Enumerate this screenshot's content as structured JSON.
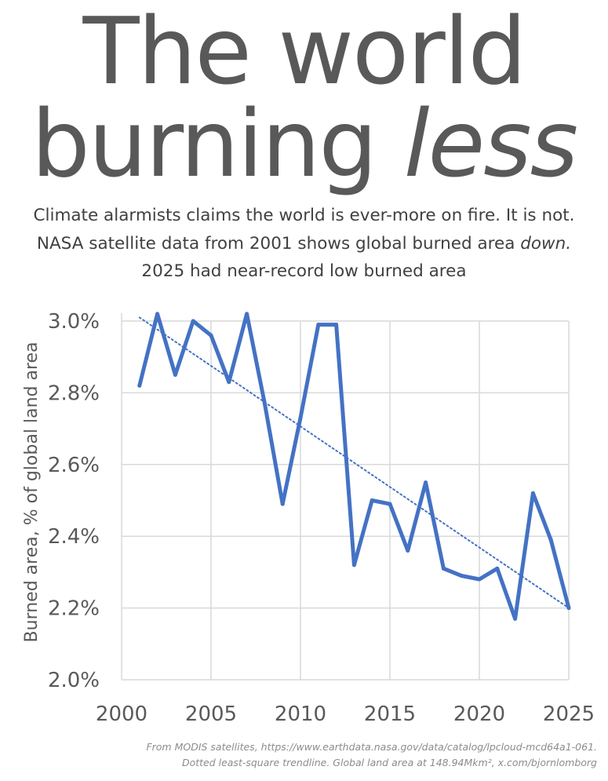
{
  "headline": {
    "line1": "The world",
    "line2_plain": "burning ",
    "line2_italic": "less"
  },
  "subtitle": {
    "line1": "Climate alarmists claims the world is ever-more on fire. It is not.",
    "line2_plain": "NASA satellite data from 2001 shows global burned area ",
    "line2_italic": "down.",
    "line3": "2025 had near-record low burned area"
  },
  "footnote": {
    "line1": "From MODIS satellites, https://www.earthdata.nasa.gov/data/catalog/lpcloud-mcd64a1-061.",
    "line2": "Dotted least-square trendline. Global land area at 148.94Mkm², x.com/bjornlomborg"
  },
  "colors": {
    "line": "#4472c4",
    "grid": "#d9d9d9",
    "text": "#595959"
  },
  "chart_data": {
    "type": "line",
    "ylabel": "Burned area, % of global land area",
    "xlabel": "",
    "xlim": [
      2000,
      2025
    ],
    "ylim": [
      2.0,
      3.0
    ],
    "x_ticks": [
      2000,
      2005,
      2010,
      2015,
      2020,
      2025
    ],
    "x_tick_labels": [
      "2000",
      "2005",
      "2010",
      "2015",
      "2020",
      "2025"
    ],
    "y_ticks": [
      2.0,
      2.2,
      2.4,
      2.6,
      2.8,
      3.0
    ],
    "y_tick_labels": [
      "2.0%",
      "2.2%",
      "2.4%",
      "2.6%",
      "2.8%",
      "3.0%"
    ],
    "grid": true,
    "series": [
      {
        "x": [
          2001,
          2002,
          2003,
          2004,
          2005,
          2006,
          2007,
          2008,
          2009,
          2010,
          2011,
          2012,
          2013,
          2014,
          2015,
          2016,
          2017,
          2018,
          2019,
          2020,
          2021,
          2022,
          2023,
          2024,
          2025
        ],
        "values": [
          2.82,
          3.02,
          2.85,
          3.0,
          2.96,
          2.83,
          3.02,
          2.77,
          2.49,
          2.73,
          2.99,
          2.99,
          2.32,
          2.5,
          2.49,
          2.36,
          2.55,
          2.31,
          2.29,
          2.28,
          2.31,
          2.17,
          2.52,
          2.39,
          2.2
        ]
      }
    ],
    "trendline": {
      "style": "dotted",
      "x": [
        2001,
        2025
      ],
      "values": [
        3.01,
        2.2
      ]
    }
  }
}
